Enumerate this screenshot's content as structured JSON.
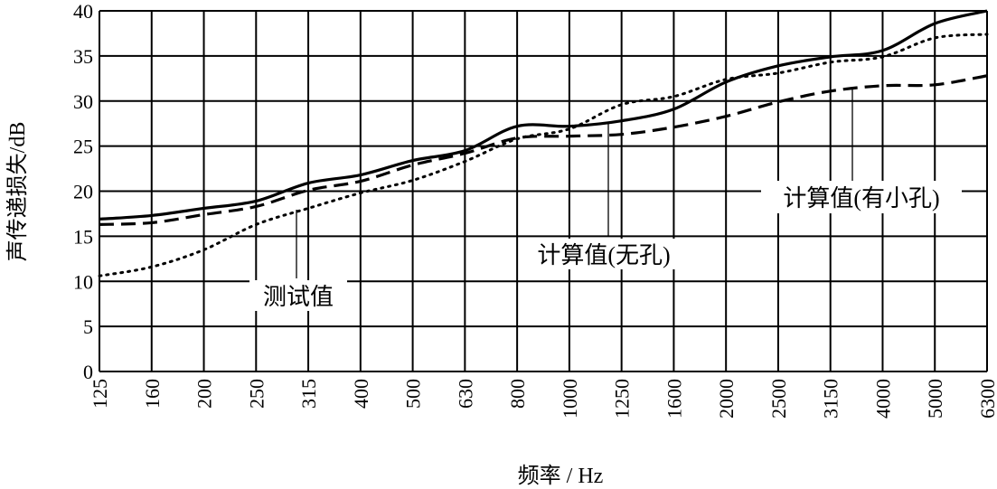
{
  "chart_data": {
    "type": "line",
    "xlabel": "频率 / Hz",
    "ylabel": "声传递损失/dB",
    "categories": [
      "125",
      "160",
      "200",
      "250",
      "315",
      "400",
      "500",
      "630",
      "800",
      "1000",
      "1250",
      "1600",
      "2000",
      "2500",
      "3150",
      "4000",
      "5000",
      "6300"
    ],
    "ylim": [
      0,
      40
    ],
    "yticks": [
      0,
      5,
      10,
      15,
      20,
      25,
      30,
      35,
      40
    ],
    "grid": true,
    "series": [
      {
        "name": "计算值(无孔)",
        "style": "solid",
        "values": [
          16.9,
          17.3,
          18.1,
          18.9,
          20.9,
          21.8,
          23.4,
          24.5,
          27.2,
          27.2,
          27.8,
          29.1,
          32.1,
          33.9,
          34.9,
          35.6,
          38.6,
          40.0
        ]
      },
      {
        "name": "计算值(有小孔)",
        "style": "dashed",
        "values": [
          16.3,
          16.5,
          17.4,
          18.3,
          20.1,
          21.1,
          22.9,
          24.2,
          25.9,
          26.1,
          26.3,
          27.1,
          28.3,
          29.9,
          31.1,
          31.7,
          31.8,
          32.8
        ]
      },
      {
        "name": "测试值",
        "style": "dotted",
        "values": [
          10.6,
          11.6,
          13.5,
          16.3,
          18.1,
          19.8,
          21.2,
          23.3,
          25.8,
          26.9,
          29.6,
          30.5,
          32.4,
          33.1,
          34.3,
          34.9,
          37.0,
          37.4
        ]
      }
    ],
    "line_color": "#000000",
    "background": "#ffffff"
  }
}
